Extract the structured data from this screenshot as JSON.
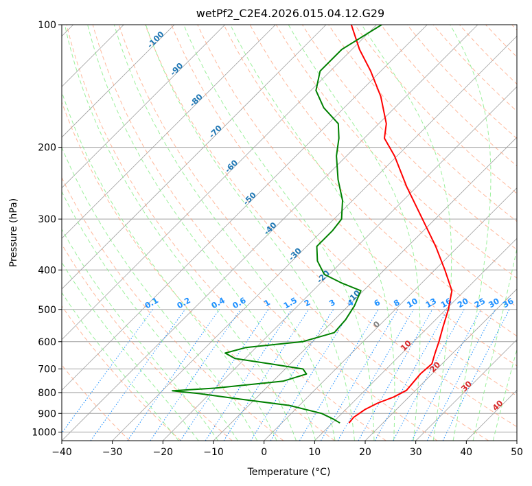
{
  "chart_data": {
    "type": "line",
    "chart_kind": "skew-T log-P diagram",
    "title": "wetPf2_C2E4.2026.015.04.12.G29",
    "xlabel": "Temperature (°C)",
    "ylabel": "Pressure (hPa)",
    "xlim": [
      -40,
      50
    ],
    "ylim": [
      1050,
      100
    ],
    "y_scale": "log",
    "x_ticks": [
      "−40",
      "−30",
      "−20",
      "−10",
      "0",
      "10",
      "20",
      "30",
      "40",
      "50"
    ],
    "y_ticks": [
      "100",
      "200",
      "300",
      "400",
      "500",
      "600",
      "700",
      "800",
      "900",
      "1000"
    ],
    "grid": true,
    "series": [
      {
        "role": "temperature",
        "color": "#ff0000",
        "points": [
          {
            "p": 950,
            "t": 13.3
          },
          {
            "p": 920,
            "t": 13.1
          },
          {
            "p": 880,
            "t": 13.8
          },
          {
            "p": 850,
            "t": 15.0
          },
          {
            "p": 820,
            "t": 17.0
          },
          {
            "p": 790,
            "t": 18.2
          },
          {
            "p": 760,
            "t": 18.0
          },
          {
            "p": 720,
            "t": 17.7
          },
          {
            "p": 680,
            "t": 18.0
          },
          {
            "p": 640,
            "t": 16.5
          },
          {
            "p": 600,
            "t": 15.0
          },
          {
            "p": 550,
            "t": 12.8
          },
          {
            "p": 500,
            "t": 10.5
          },
          {
            "p": 450,
            "t": 7.5
          },
          {
            "p": 400,
            "t": 2.0
          },
          {
            "p": 350,
            "t": -4.5
          },
          {
            "p": 300,
            "t": -12.5
          },
          {
            "p": 250,
            "t": -22.0
          },
          {
            "p": 210,
            "t": -30.5
          },
          {
            "p": 190,
            "t": -36.0
          },
          {
            "p": 175,
            "t": -38.5
          },
          {
            "p": 150,
            "t": -45.0
          },
          {
            "p": 130,
            "t": -52.0
          },
          {
            "p": 115,
            "t": -58.5
          },
          {
            "p": 100,
            "t": -65.0
          }
        ]
      },
      {
        "role": "dewpoint",
        "color": "#008000",
        "points": [
          {
            "p": 950,
            "t": 11.5
          },
          {
            "p": 930,
            "t": 9.5
          },
          {
            "p": 900,
            "t": 6.0
          },
          {
            "p": 860,
            "t": -2.0
          },
          {
            "p": 830,
            "t": -13.0
          },
          {
            "p": 805,
            "t": -22.0
          },
          {
            "p": 792,
            "t": -28.0
          },
          {
            "p": 780,
            "t": -20.0
          },
          {
            "p": 750,
            "t": -8.0
          },
          {
            "p": 720,
            "t": -4.8
          },
          {
            "p": 700,
            "t": -6.5
          },
          {
            "p": 680,
            "t": -14.0
          },
          {
            "p": 660,
            "t": -22.0
          },
          {
            "p": 640,
            "t": -25.0
          },
          {
            "p": 620,
            "t": -22.0
          },
          {
            "p": 600,
            "t": -12.0
          },
          {
            "p": 570,
            "t": -7.5
          },
          {
            "p": 530,
            "t": -7.8
          },
          {
            "p": 490,
            "t": -8.8
          },
          {
            "p": 450,
            "t": -10.5
          },
          {
            "p": 430,
            "t": -16.0
          },
          {
            "p": 410,
            "t": -21.0
          },
          {
            "p": 380,
            "t": -25.0
          },
          {
            "p": 350,
            "t": -28.0
          },
          {
            "p": 320,
            "t": -28.0
          },
          {
            "p": 300,
            "t": -28.5
          },
          {
            "p": 270,
            "t": -32.0
          },
          {
            "p": 240,
            "t": -37.0
          },
          {
            "p": 210,
            "t": -42.0
          },
          {
            "p": 190,
            "t": -45.0
          },
          {
            "p": 175,
            "t": -48.0
          },
          {
            "p": 160,
            "t": -54.0
          },
          {
            "p": 145,
            "t": -59.0
          },
          {
            "p": 130,
            "t": -62.0
          },
          {
            "p": 115,
            "t": -62.0
          },
          {
            "p": 100,
            "t": -59.0
          }
        ]
      }
    ],
    "dry_adiabat_color": "#ffa07a",
    "moist_adiabat_color": "#90ee90",
    "mixing_ratio_color": "#1e90ff",
    "isotherm_color": "#a0a0a0",
    "isotherm_label_color": "#1f77b4",
    "warm_label_color": "#d62728",
    "isotherm_labels": [
      {
        "value": "-100",
        "p": 110
      },
      {
        "value": "-90",
        "p": 130
      },
      {
        "value": "-80",
        "p": 155
      },
      {
        "value": "-70",
        "p": 185
      },
      {
        "value": "-60",
        "p": 225
      },
      {
        "value": "-50",
        "p": 270
      },
      {
        "value": "-40",
        "p": 320
      },
      {
        "value": "-30",
        "p": 370
      },
      {
        "value": "-20",
        "p": 420
      },
      {
        "value": "-10",
        "p": 470
      }
    ],
    "warm_isotherm_labels": [
      {
        "value": "0",
        "p": 550,
        "color": "#808080"
      },
      {
        "value": "10",
        "p": 620,
        "color": "#d62728"
      },
      {
        "value": "20",
        "p": 700,
        "color": "#d62728"
      },
      {
        "value": "30",
        "p": 780,
        "color": "#d62728"
      },
      {
        "value": "40",
        "p": 870,
        "color": "#d62728"
      }
    ],
    "mixing_ratio_labels": [
      "0.1",
      "0.2",
      "0.4",
      "0.6",
      "1",
      "1.5",
      "2",
      "3",
      "4",
      "6",
      "8",
      "10",
      "13",
      "16",
      "20",
      "25",
      "30",
      "36"
    ],
    "mixing_ratio_label_pressure": 500
  }
}
